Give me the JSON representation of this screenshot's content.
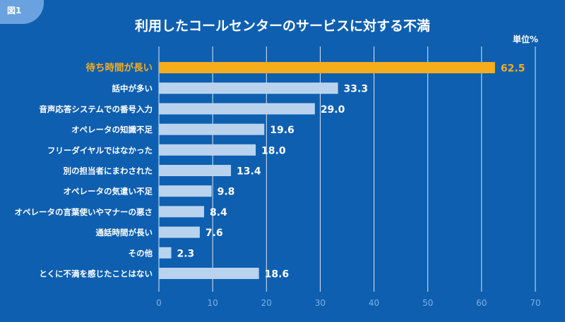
{
  "figure_label": "図1",
  "unit_label": "単位%",
  "colors": {
    "background": "#0e5fb0",
    "bar": "#b9d3ee",
    "highlight": "#f6ad1c",
    "text": "#ffffff",
    "grid": "#ffffff",
    "axis_tick": "#7fb0e4"
  },
  "chart_data": {
    "type": "bar",
    "orientation": "horizontal",
    "title": "利用したコールセンターのサービスに対する不満",
    "unit": "単位%",
    "xlim": [
      0,
      70
    ],
    "xticks": [
      0,
      10,
      20,
      30,
      40,
      50,
      60,
      70
    ],
    "grid": true,
    "highlight_index": 0,
    "categories": [
      "待ち時間が長い",
      "話中が多い",
      "音声応答システムでの番号入力",
      "オペレータの知識不足",
      "フリーダイヤルではなかった",
      "別の担当者にまわされた",
      "オペレータの気遣い不足",
      "オペレータの言葉使いやマナーの悪さ",
      "通話時間が長い",
      "その他",
      "とくに不満を感じたことはない"
    ],
    "values": [
      62.5,
      33.3,
      29.0,
      19.6,
      18.0,
      13.4,
      9.8,
      8.4,
      7.6,
      2.3,
      18.6
    ],
    "value_labels": [
      "62.5",
      "33.3",
      "29.0",
      "19.6",
      "18.0",
      "13.4",
      "9.8",
      "8.4",
      "7.6",
      "2.3",
      "18.6"
    ]
  }
}
